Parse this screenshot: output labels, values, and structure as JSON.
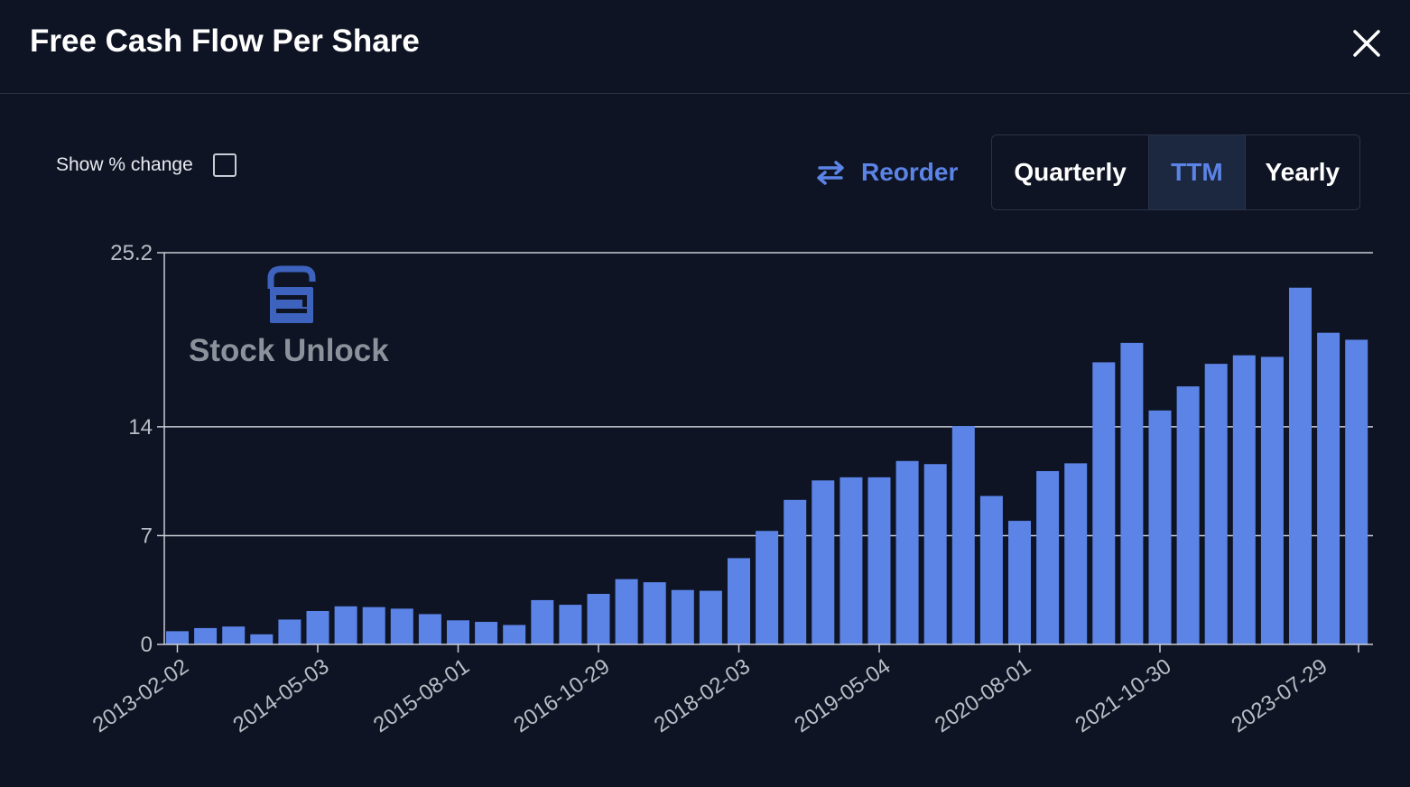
{
  "header": {
    "title": "Free Cash Flow Per Share"
  },
  "controls": {
    "show_change_label": "Show % change",
    "show_change_checked": false,
    "reorder_label": "Reorder",
    "periods": [
      "Quarterly",
      "TTM",
      "Yearly"
    ],
    "active_period": "TTM"
  },
  "watermark": {
    "text": "Stock Unlock"
  },
  "colors": {
    "bar": "#5b84e6",
    "accent": "#5b84e6",
    "background": "#0e1424"
  },
  "chart_data": {
    "type": "bar",
    "title": "Free Cash Flow Per Share",
    "xlabel": "",
    "ylabel": "",
    "ylim": [
      0,
      25.2
    ],
    "yticks": [
      "0",
      "7",
      "14",
      "25.2"
    ],
    "grid": true,
    "x_tick_labels": [
      "2013-02-02",
      "2014-05-03",
      "2015-08-01",
      "2016-10-29",
      "2018-02-03",
      "2019-05-04",
      "2020-08-01",
      "2021-10-30",
      "2023-07-29"
    ],
    "values": [
      0.85,
      1.05,
      1.15,
      0.65,
      1.6,
      2.15,
      2.45,
      2.4,
      2.3,
      1.95,
      1.55,
      1.45,
      1.25,
      2.85,
      2.55,
      3.25,
      4.2,
      4.0,
      3.5,
      3.45,
      5.55,
      7.3,
      9.3,
      10.55,
      10.75,
      10.75,
      11.8,
      11.6,
      14.05,
      9.55,
      7.95,
      11.15,
      11.65,
      18.15,
      19.4,
      15.05,
      16.6,
      18.05,
      18.6,
      18.5,
      22.95,
      20.05,
      19.6
    ]
  }
}
